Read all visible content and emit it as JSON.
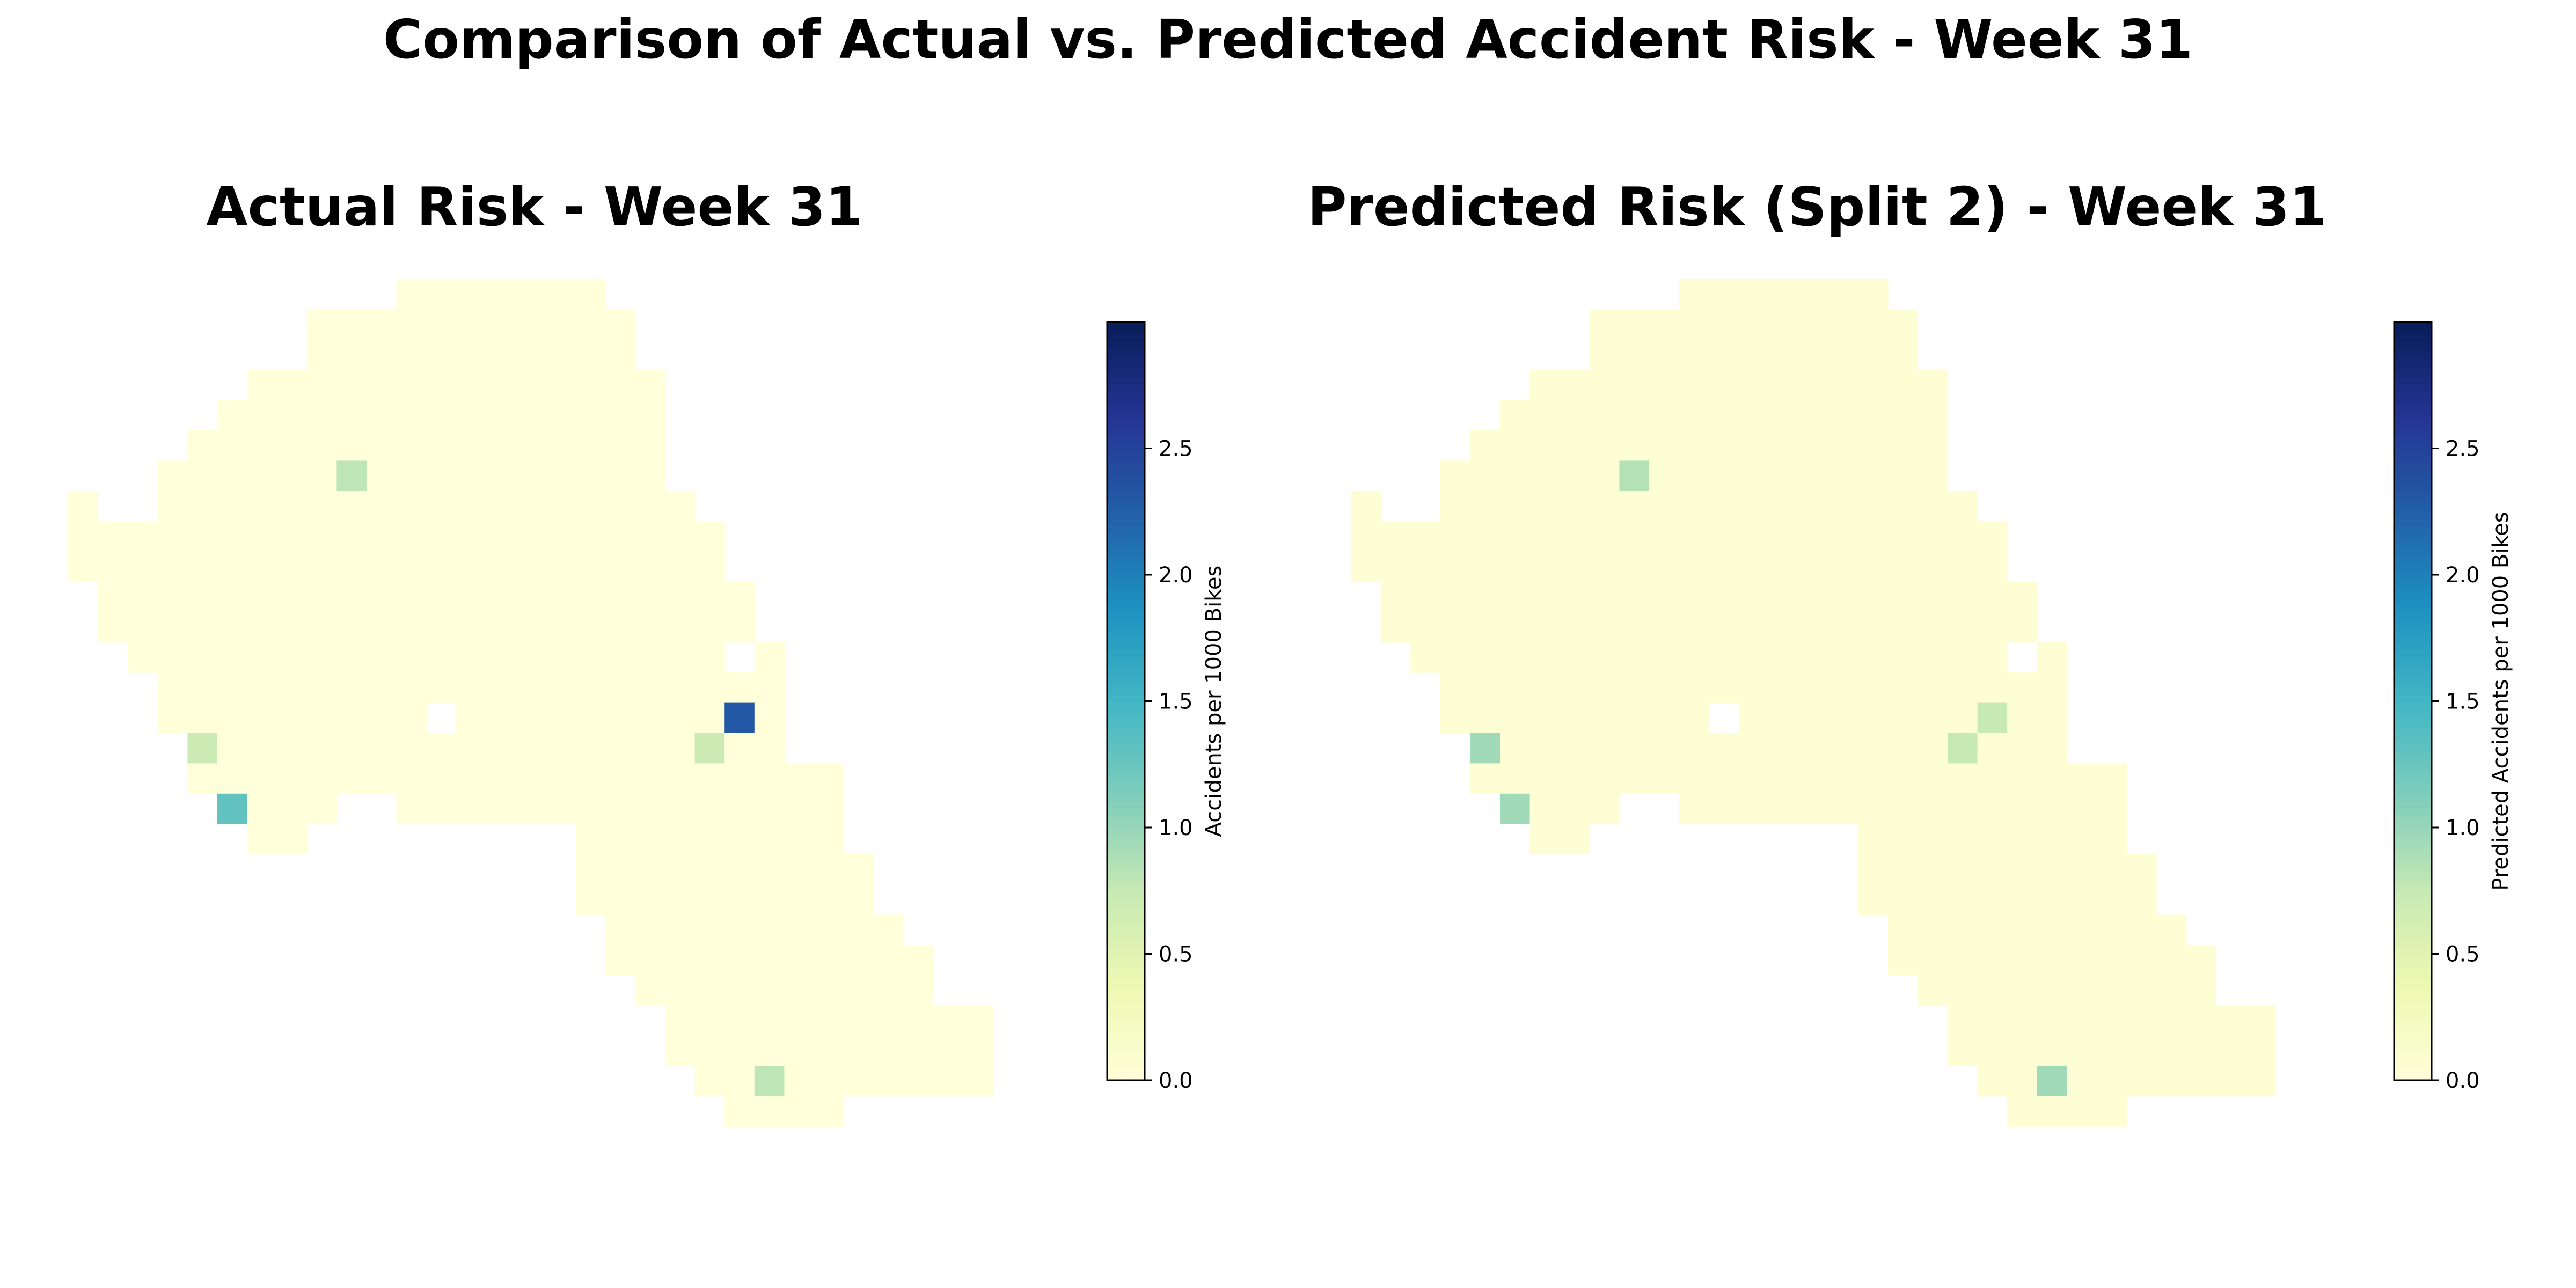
{
  "figure_title": "Comparison of Actual vs. Predicted Accident Risk - Week 31",
  "colors": {
    "cmap": "YlGnBu",
    "background": "#ffffff",
    "missing_cell": "#ffffff"
  },
  "chart_data": [
    {
      "type": "heatmap",
      "title": "Actual Risk - Week 31",
      "colorbar_label": "Accidents per 1000 Bikes",
      "vmin": 0,
      "vmax": 3.0,
      "colorbar_ticks": [
        "0.0",
        "0.5",
        "1.0",
        "1.5",
        "2.0",
        "2.5"
      ],
      "grid_rows": 28,
      "grid_cols": 32,
      "base_value": 0.0,
      "highlights": [
        {
          "row": 6,
          "col": 9,
          "value": 0.8
        },
        {
          "row": 14,
          "col": 22,
          "value": 2.3
        },
        {
          "row": 15,
          "col": 4,
          "value": 0.7
        },
        {
          "row": 15,
          "col": 21,
          "value": 0.7
        },
        {
          "row": 17,
          "col": 5,
          "value": 1.3
        },
        {
          "row": 26,
          "col": 23,
          "value": 0.8
        }
      ]
    },
    {
      "type": "heatmap",
      "title": "Predicted Risk (Split 2) - Week 31",
      "colorbar_label": "Predicted Accidents per 1000 Bikes",
      "vmin": 0,
      "vmax": 3.0,
      "colorbar_ticks": [
        "0.0",
        "0.5",
        "1.0",
        "1.5",
        "2.0",
        "2.5"
      ],
      "grid_rows": 28,
      "grid_cols": 32,
      "base_value": 0.05,
      "highlights": [
        {
          "row": 6,
          "col": 9,
          "value": 0.85
        },
        {
          "row": 14,
          "col": 21,
          "value": 0.75
        },
        {
          "row": 15,
          "col": 4,
          "value": 0.95
        },
        {
          "row": 15,
          "col": 20,
          "value": 0.75
        },
        {
          "row": 17,
          "col": 5,
          "value": 0.95
        },
        {
          "row": 26,
          "col": 23,
          "value": 0.95
        }
      ]
    }
  ]
}
